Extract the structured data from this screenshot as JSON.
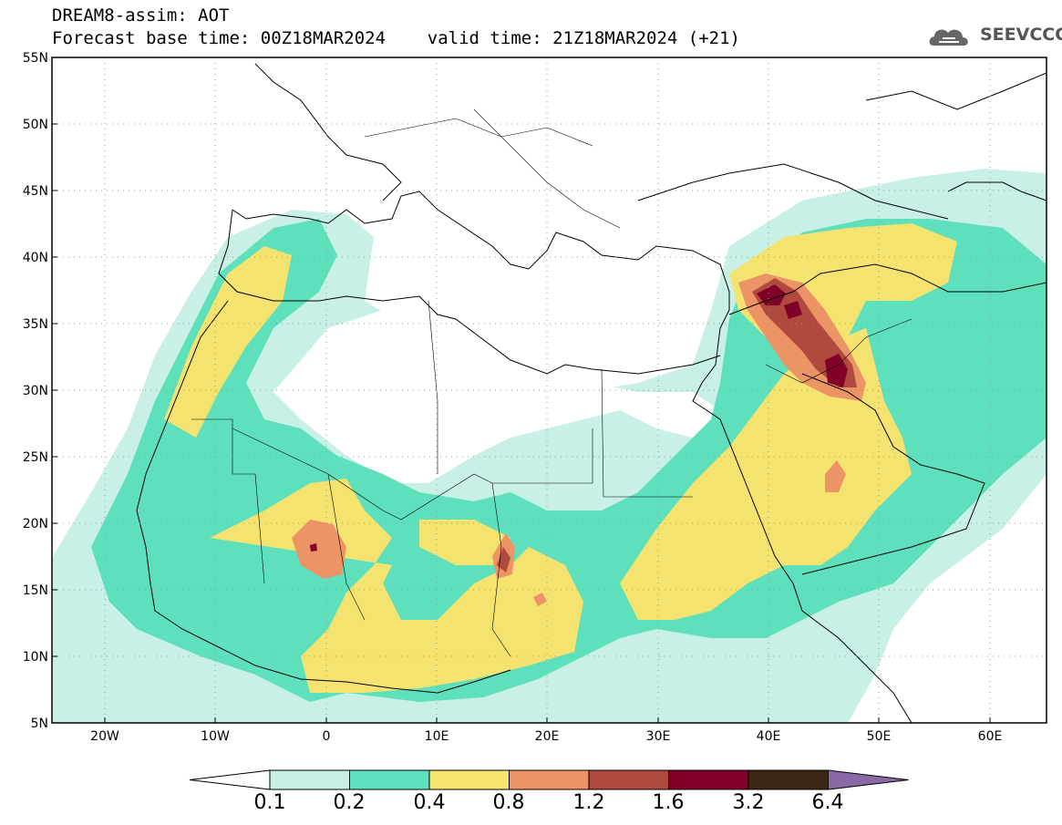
{
  "header": {
    "line1": "DREAM8-assim: AOT",
    "line2": "Forecast base time: 00Z18MAR2024    valid time: 21Z18MAR2024 (+21)",
    "logo_text": "SEEVCCC"
  },
  "map": {
    "projection": "lat-lon",
    "lon_range": [
      -25,
      65
    ],
    "lat_range": [
      5,
      55
    ],
    "lat_ticks": [
      "55N",
      "50N",
      "45N",
      "40N",
      "35N",
      "30N",
      "25N",
      "20N",
      "15N",
      "10N",
      "5N"
    ],
    "lon_ticks": [
      "20W",
      "10W",
      "0",
      "10E",
      "20E",
      "30E",
      "40E",
      "50E",
      "60E"
    ],
    "grid": "dotted"
  },
  "colorbar": {
    "labels": [
      "0.1",
      "0.2",
      "0.4",
      "0.8",
      "1.2",
      "1.6",
      "3.2",
      "6.4"
    ],
    "colors": [
      "#ffffff",
      "#c8f0e6",
      "#5ee0bc",
      "#f5e370",
      "#ec9465",
      "#b04a3e",
      "#800028",
      "#3d2514",
      "#8a6aa6"
    ]
  }
}
